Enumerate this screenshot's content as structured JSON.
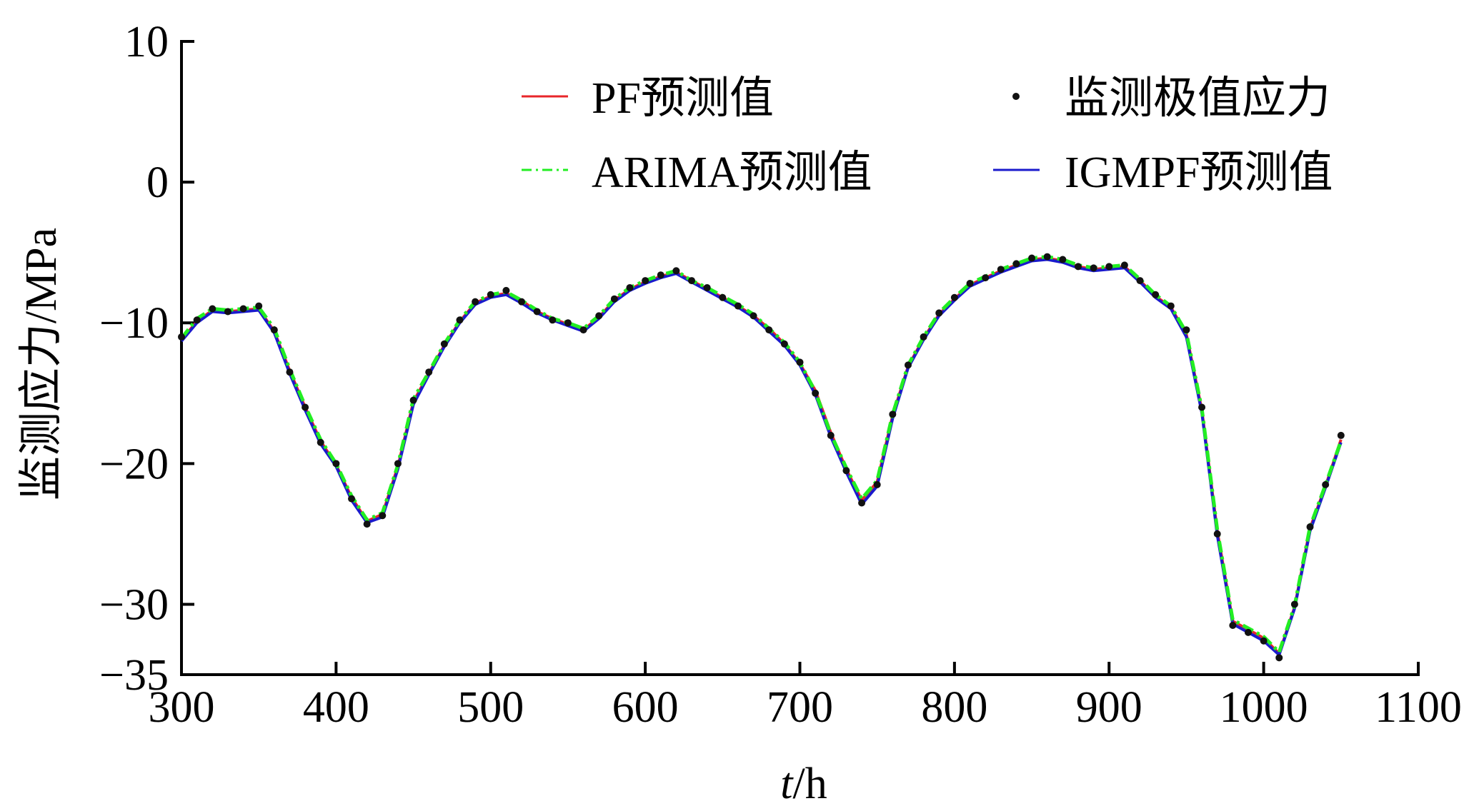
{
  "chart_data": {
    "type": "line",
    "title": "",
    "xlabel": "t/h",
    "xlabel_parts": {
      "var": "t",
      "unit": "/h"
    },
    "ylabel": "监测应力/MPa",
    "xlim": [
      300,
      1100
    ],
    "ylim": [
      -35,
      10
    ],
    "xticks": [
      300,
      400,
      500,
      600,
      700,
      800,
      900,
      1000,
      1100
    ],
    "yticks": [
      10,
      0,
      -10,
      -20,
      -30,
      -35
    ],
    "ytick_labels": [
      "10",
      "0",
      "−10",
      "−20",
      "−30",
      "−35"
    ],
    "xtick_labels": [
      "300",
      "400",
      "500",
      "600",
      "700",
      "800",
      "900",
      "1000",
      "1100"
    ],
    "grid": false,
    "legend_position": "top",
    "legend": [
      {
        "label": "PF预测值",
        "series": "PF"
      },
      {
        "label": "监测极值应力",
        "series": "monitor"
      },
      {
        "label": "ARIMA预测值",
        "series": "ARIMA"
      },
      {
        "label": "IGMPF预测值",
        "series": "IGMPF"
      }
    ],
    "colors": {
      "PF": "#e8262a",
      "ARIMA": "#22ee22",
      "IGMPF": "#1a1acc",
      "monitor": "#111111"
    },
    "x": [
      300,
      310,
      320,
      330,
      340,
      350,
      360,
      370,
      380,
      390,
      400,
      410,
      420,
      430,
      440,
      450,
      460,
      470,
      480,
      490,
      500,
      510,
      520,
      530,
      540,
      550,
      560,
      570,
      580,
      590,
      600,
      610,
      620,
      630,
      640,
      650,
      660,
      670,
      680,
      690,
      700,
      710,
      720,
      730,
      740,
      750,
      760,
      770,
      780,
      790,
      800,
      810,
      820,
      830,
      840,
      850,
      860,
      870,
      880,
      890,
      900,
      910,
      920,
      930,
      940,
      950,
      960,
      970,
      980,
      990,
      1000,
      1010,
      1020,
      1030,
      1040,
      1050
    ],
    "series": [
      {
        "name": "监测极值应力",
        "key": "monitor",
        "values": [
          -11,
          -9.8,
          -9,
          -9.2,
          -9,
          -8.8,
          -10.5,
          -13.5,
          -16,
          -18.5,
          -20,
          -22.5,
          -24.3,
          -23.7,
          -20,
          -15.5,
          -13.5,
          -11.5,
          -9.8,
          -8.5,
          -8,
          -7.7,
          -8.5,
          -9.2,
          -9.8,
          -10,
          -10.5,
          -9.5,
          -8.3,
          -7.5,
          -7,
          -6.6,
          -6.3,
          -7,
          -7.5,
          -8.2,
          -8.8,
          -9.5,
          -10.5,
          -11.5,
          -12.8,
          -15,
          -18,
          -20.5,
          -22.8,
          -21.5,
          -16.5,
          -13,
          -11,
          -9.3,
          -8.2,
          -7.2,
          -6.8,
          -6.2,
          -5.8,
          -5.4,
          -5.3,
          -5.5,
          -6,
          -6.1,
          -6,
          -5.9,
          -7,
          -8,
          -8.8,
          -10.5,
          -16,
          -25,
          -31.5,
          -32,
          -32.6,
          -33.8,
          -30,
          -24.5,
          -21.5,
          -18
        ]
      },
      {
        "name": "PF预测值",
        "key": "PF",
        "values": [
          -11.2,
          -9.9,
          -9.1,
          -9.2,
          -9.1,
          -9,
          -10.6,
          -13.4,
          -16,
          -18.4,
          -20.1,
          -22.4,
          -24.1,
          -23.6,
          -20.2,
          -15.6,
          -13.6,
          -11.6,
          -9.9,
          -8.6,
          -8.1,
          -7.9,
          -8.4,
          -9.2,
          -9.7,
          -10.1,
          -10.5,
          -9.6,
          -8.4,
          -7.6,
          -7.1,
          -6.7,
          -6.4,
          -7,
          -7.6,
          -8.2,
          -8.8,
          -9.5,
          -10.4,
          -11.5,
          -12.9,
          -14.8,
          -17.8,
          -20.4,
          -22.6,
          -21.3,
          -16.6,
          -13.1,
          -11.1,
          -9.4,
          -8.3,
          -7.3,
          -6.8,
          -6.3,
          -5.9,
          -5.5,
          -5.4,
          -5.6,
          -6,
          -6.2,
          -6.1,
          -6,
          -7,
          -8.1,
          -8.9,
          -10.8,
          -16.2,
          -24.8,
          -31.2,
          -31.8,
          -32.4,
          -33.5,
          -30.2,
          -24.6,
          -21.6,
          -18.3
        ]
      },
      {
        "name": "ARIMA预测值",
        "key": "ARIMA",
        "values": [
          -11.1,
          -9.7,
          -9,
          -9.1,
          -9,
          -8.9,
          -10.4,
          -13.3,
          -15.9,
          -18.3,
          -20,
          -22.3,
          -24,
          -23.5,
          -20.1,
          -15.4,
          -13.5,
          -11.5,
          -9.8,
          -8.5,
          -8,
          -7.8,
          -8.4,
          -9.1,
          -9.7,
          -10,
          -10.4,
          -9.5,
          -8.3,
          -7.5,
          -7,
          -6.6,
          -6.3,
          -7,
          -7.5,
          -8.1,
          -8.7,
          -9.4,
          -10.4,
          -11.4,
          -12.8,
          -14.9,
          -17.9,
          -20.3,
          -22.5,
          -21.2,
          -16.5,
          -13,
          -11,
          -9.3,
          -8.2,
          -7.2,
          -6.7,
          -6.2,
          -5.8,
          -5.4,
          -5.3,
          -5.5,
          -5.9,
          -6.1,
          -6,
          -5.9,
          -6.9,
          -8,
          -8.8,
          -10.7,
          -16.1,
          -24.7,
          -31.1,
          -31.7,
          -32.3,
          -33.4,
          -30.1,
          -24.5,
          -21.5,
          -18.4
        ]
      },
      {
        "name": "IGMPF预测值",
        "key": "IGMPF",
        "values": [
          -11.3,
          -10,
          -9.2,
          -9.3,
          -9.2,
          -9.1,
          -10.7,
          -13.6,
          -16.2,
          -18.6,
          -20.2,
          -22.6,
          -24.2,
          -23.8,
          -20.4,
          -15.8,
          -13.7,
          -11.7,
          -10,
          -8.7,
          -8.2,
          -8,
          -8.6,
          -9.3,
          -9.8,
          -10.2,
          -10.6,
          -9.7,
          -8.5,
          -7.7,
          -7.2,
          -6.8,
          -6.5,
          -7.1,
          -7.7,
          -8.3,
          -8.9,
          -9.6,
          -10.6,
          -11.6,
          -13,
          -15.1,
          -18.1,
          -20.6,
          -22.9,
          -21.6,
          -16.8,
          -13.2,
          -11.2,
          -9.5,
          -8.4,
          -7.4,
          -6.9,
          -6.4,
          -6,
          -5.6,
          -5.5,
          -5.7,
          -6.1,
          -6.3,
          -6.2,
          -6.1,
          -7.1,
          -8.2,
          -9,
          -11,
          -16.4,
          -25.1,
          -31.4,
          -32,
          -32.6,
          -33.6,
          -30.3,
          -24.8,
          -21.7,
          -18.5
        ]
      }
    ]
  }
}
